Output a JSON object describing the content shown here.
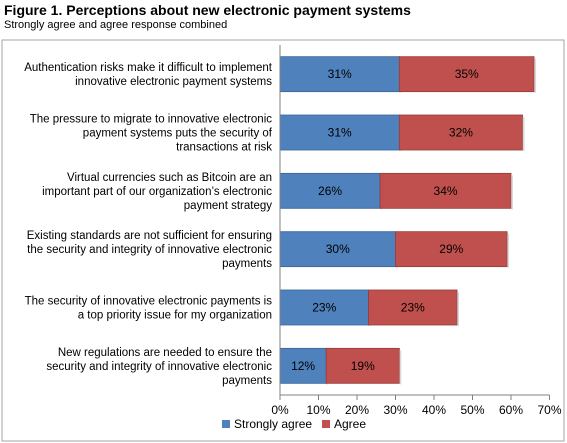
{
  "title": "Figure 1. Perceptions about new electronic payment systems",
  "subtitle": "Strongly agree and agree response combined",
  "colors": {
    "strongly_agree": "#4F81BD",
    "agree": "#C0504D",
    "strongly_agree_edge": "#3A6498",
    "agree_edge": "#943C3A",
    "frame": "#A6A6A6",
    "axis": "#808080"
  },
  "chart_data": {
    "type": "bar",
    "orientation": "horizontal",
    "stacked": true,
    "categories": [
      [
        "Authentication risks make it difficult to implement",
        "innovative electronic payment systems"
      ],
      [
        "The pressure to migrate to innovative electronic",
        "payment systems puts the security of",
        "transactions at risk"
      ],
      [
        "Virtual currencies such as Bitcoin are an",
        "important part of our organization’s electronic",
        "payment strategy"
      ],
      [
        "Existing standards are not sufficient for ensuring",
        "the security and integrity of innovative electronic",
        "payments"
      ],
      [
        "The security of innovative electronic payments is",
        "a top priority issue for my organization"
      ],
      [
        "New regulations are needed to ensure the",
        "security and integrity of innovative electronic",
        "payments"
      ]
    ],
    "series": [
      {
        "name": "Strongly agree",
        "values": [
          31,
          31,
          26,
          30,
          23,
          12
        ],
        "labels": [
          "31%",
          "31%",
          "26%",
          "30%",
          "23%",
          "12%"
        ]
      },
      {
        "name": "Agree",
        "values": [
          35,
          32,
          34,
          29,
          23,
          19
        ],
        "labels": [
          "35%",
          "32%",
          "34%",
          "29%",
          "23%",
          "19%"
        ]
      }
    ],
    "xlim": [
      0,
      70
    ],
    "xticks": [
      "0%",
      "10%",
      "20%",
      "30%",
      "40%",
      "50%",
      "60%",
      "70%"
    ],
    "legend_position": "bottom",
    "grid": false
  }
}
